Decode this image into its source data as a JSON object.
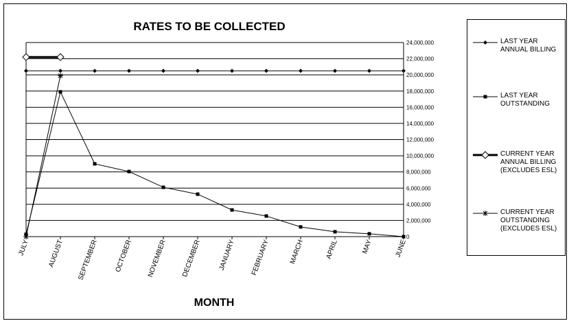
{
  "chart_data": {
    "type": "line",
    "title": "RATES TO BE COLLECTED",
    "x_label": "MONTH",
    "categories": [
      "JULY",
      "AUGUST",
      "SEPTEMBER",
      "OCTOBER",
      "NOVEMBER",
      "DECEMBER",
      "JANUARY",
      "FEBRUARY",
      "MARCH",
      "APRIL",
      "MAY",
      "JUNE"
    ],
    "ylim": [
      0,
      24000000
    ],
    "yticks": [
      0,
      {
        "value": 2000000,
        "label": "2,000,000"
      },
      {
        "value": 4000000,
        "label": "4,000,000"
      },
      {
        "value": 6000000,
        "label": "6,000,000"
      },
      {
        "value": 8000000,
        "label": "8,000,000"
      },
      {
        "value": 10000000,
        "label": "10,000,000"
      },
      {
        "value": 12000000,
        "label": "12,000,000"
      },
      {
        "value": 14000000,
        "label": "14,000,000"
      },
      {
        "value": 16000000,
        "label": "16,000,000"
      },
      {
        "value": 18000000,
        "label": "18,000,000"
      },
      {
        "value": 20000000,
        "label": "20,000,000"
      },
      {
        "value": 22000000,
        "label": "22,000,000"
      },
      {
        "value": 24000000,
        "label": "24,000,000"
      }
    ],
    "y_axis_side": "right",
    "grid": true,
    "legend_position": "right",
    "series": [
      {
        "name": "LAST YEAR ANNUAL BILLING",
        "color": "#000000",
        "marker": "diamond",
        "line_width": 1,
        "values": [
          20500000,
          20500000,
          20500000,
          20500000,
          20500000,
          20500000,
          20500000,
          20500000,
          20500000,
          20500000,
          20500000,
          20500000
        ]
      },
      {
        "name": "LAST YEAR OUTSTANDING",
        "color": "#000000",
        "marker": "square",
        "line_width": 1,
        "values": [
          300000,
          17900000,
          9000000,
          8050000,
          6100000,
          5250000,
          3300000,
          2550000,
          1200000,
          600000,
          350000,
          0
        ]
      },
      {
        "name": "CURRENT YEAR ANNUAL BILLING (EXCLUDES ESL)",
        "color": "#000000",
        "marker": "open-diamond",
        "line_width": 3,
        "values": [
          22200000,
          22200000,
          null,
          null,
          null,
          null,
          null,
          null,
          null,
          null,
          null,
          null
        ]
      },
      {
        "name": "CURRENT YEAR OUTSTANDING (EXCLUDES ESL)",
        "color": "#000000",
        "marker": "asterisk",
        "line_width": 1,
        "values": [
          0,
          19900000,
          null,
          null,
          null,
          null,
          null,
          null,
          null,
          null,
          null,
          null
        ]
      }
    ]
  }
}
